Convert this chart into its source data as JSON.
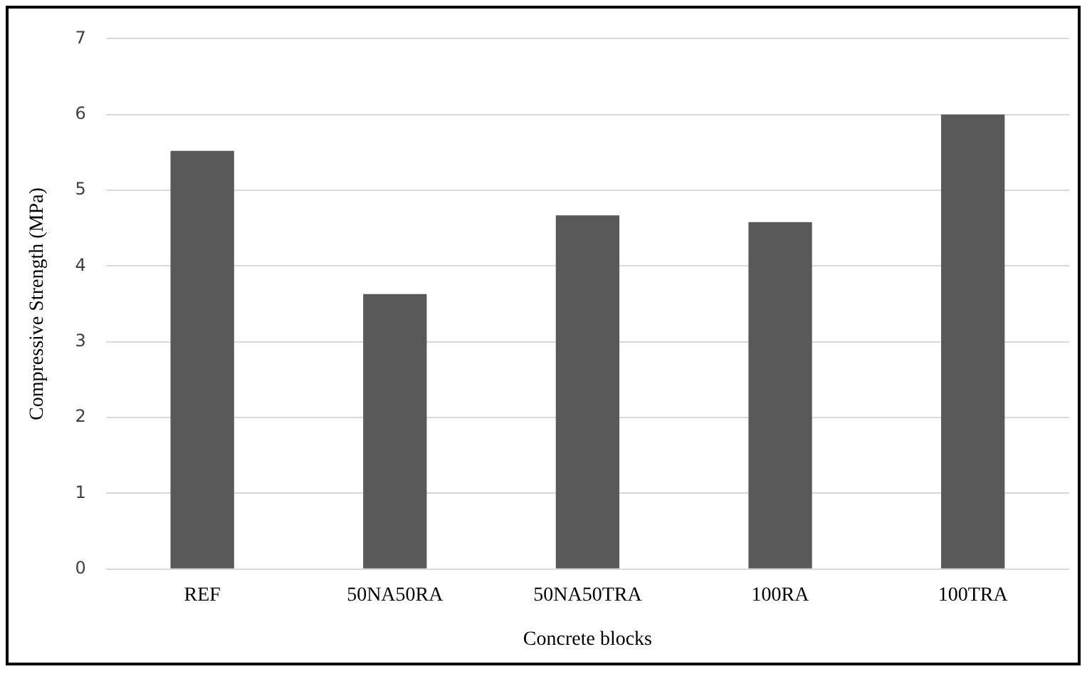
{
  "chart_data": {
    "type": "bar",
    "xlabel": "Concrete blocks",
    "ylabel": "Compressive Strength (MPa)",
    "categories": [
      "REF",
      "50NA50RA",
      "50NA50TRA",
      "100RA",
      "100TRA"
    ],
    "values": [
      5.52,
      3.63,
      4.67,
      4.58,
      6.0
    ],
    "color": "#595959",
    "ylim": [
      0,
      7
    ],
    "yticks": [
      0,
      1,
      2,
      3,
      4,
      5,
      6,
      7
    ],
    "grid": "y"
  }
}
